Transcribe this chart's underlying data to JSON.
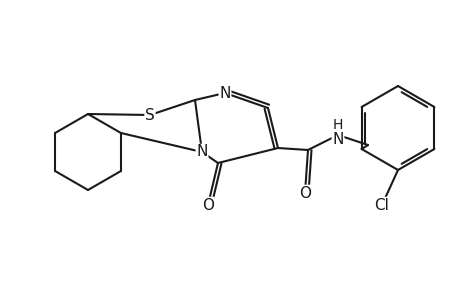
{
  "background_color": "#ffffff",
  "line_color": "#1a1a1a",
  "text_color": "#1a1a1a",
  "line_width": 1.5,
  "font_size": 11,
  "figsize": [
    4.6,
    3.0
  ],
  "dpi": 100,
  "xlim": [
    0,
    460
  ],
  "ylim": [
    0,
    300
  ]
}
